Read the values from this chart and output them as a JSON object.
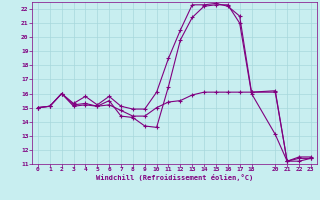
{
  "xlabel": "Windchill (Refroidissement éolien,°C)",
  "bg_color": "#c8eef0",
  "grid_color": "#a8d8dc",
  "line_color": "#800080",
  "ylim": [
    11,
    22.5
  ],
  "xlim": [
    -0.5,
    23.5
  ],
  "yticks": [
    11,
    12,
    13,
    14,
    15,
    16,
    17,
    18,
    19,
    20,
    21,
    22
  ],
  "xticks": [
    0,
    1,
    2,
    3,
    4,
    5,
    6,
    7,
    8,
    9,
    10,
    11,
    12,
    13,
    14,
    15,
    16,
    17,
    18,
    20,
    21,
    22,
    23
  ],
  "curve1_x": [
    0,
    1,
    2,
    3,
    4,
    5,
    6,
    7,
    8,
    9,
    10,
    11,
    12,
    13,
    14,
    15,
    16,
    17,
    18,
    20,
    21,
    22,
    23
  ],
  "curve1_y": [
    15.0,
    15.1,
    16.0,
    15.1,
    15.2,
    15.1,
    15.5,
    14.4,
    14.3,
    13.7,
    13.6,
    16.5,
    19.8,
    21.4,
    22.2,
    22.3,
    22.3,
    21.0,
    16.0,
    13.1,
    11.2,
    11.2,
    11.4
  ],
  "curve2_x": [
    0,
    1,
    2,
    3,
    4,
    5,
    6,
    7,
    8,
    9,
    10,
    11,
    12,
    13,
    14,
    15,
    16,
    17,
    18,
    20,
    21,
    22,
    23
  ],
  "curve2_y": [
    15.0,
    15.1,
    16.0,
    15.3,
    15.8,
    15.2,
    15.8,
    15.1,
    14.9,
    14.9,
    16.1,
    18.5,
    20.5,
    22.3,
    22.3,
    22.4,
    22.2,
    21.5,
    16.1,
    16.2,
    11.2,
    11.5,
    11.5
  ],
  "curve3_x": [
    0,
    1,
    2,
    3,
    4,
    5,
    6,
    7,
    8,
    9,
    10,
    11,
    12,
    13,
    14,
    15,
    16,
    17,
    18,
    20,
    21,
    22,
    23
  ],
  "curve3_y": [
    15.0,
    15.1,
    16.0,
    15.2,
    15.3,
    15.1,
    15.2,
    14.8,
    14.4,
    14.4,
    15.0,
    15.4,
    15.5,
    15.9,
    16.1,
    16.1,
    16.1,
    16.1,
    16.1,
    16.1,
    11.2,
    11.4,
    11.4
  ]
}
